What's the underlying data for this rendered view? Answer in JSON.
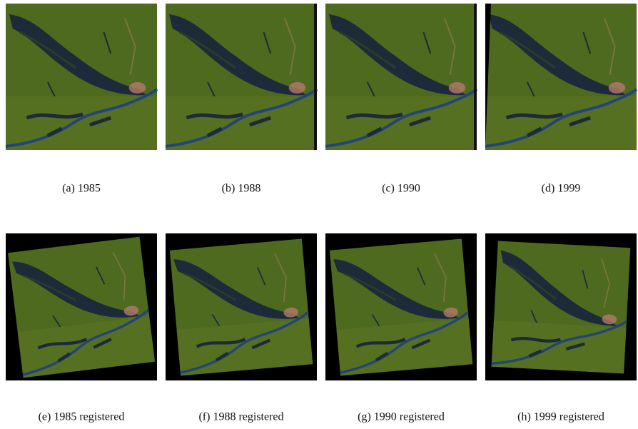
{
  "panels": [
    {
      "caption": "(a) 1985"
    },
    {
      "caption": "(b) 1988"
    },
    {
      "caption": "(c) 1990"
    },
    {
      "caption": "(d) 1999"
    },
    {
      "caption": "(e) 1985 registered"
    },
    {
      "caption": "(f) 1988 registered"
    },
    {
      "caption": "(g) 1990 registered"
    },
    {
      "caption": "(h) 1999 registered"
    }
  ]
}
